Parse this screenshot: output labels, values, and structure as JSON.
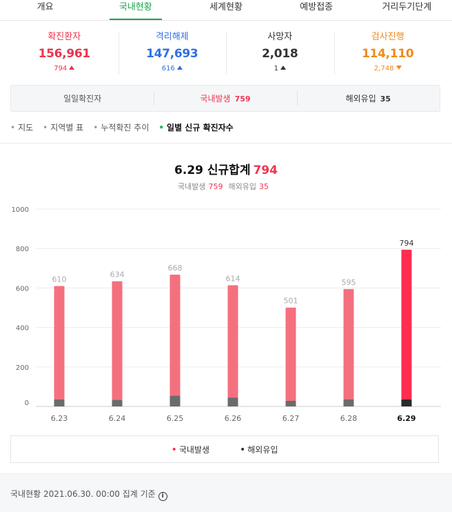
{
  "tabs": [
    {
      "label": "개요"
    },
    {
      "label": "국내현황"
    },
    {
      "label": "세계현황"
    },
    {
      "label": "예방접종"
    },
    {
      "label": "거리두기단계"
    }
  ],
  "stats": [
    {
      "label": "확진환자",
      "value": "156,961",
      "delta": "794",
      "direction": "up",
      "color": "#e8344e"
    },
    {
      "label": "격리해제",
      "value": "147,693",
      "delta": "616",
      "direction": "up",
      "color": "#2f6ee5"
    },
    {
      "label": "사망자",
      "value": "2,018",
      "delta": "1",
      "direction": "up",
      "color": "#333333"
    },
    {
      "label": "검사진행",
      "value": "114,110",
      "delta": "2,748",
      "direction": "down",
      "color": "#f08a1c"
    }
  ],
  "daily": {
    "label": "일일확진자",
    "domestic_label": "국내발생",
    "domestic_value": "759",
    "imported_label": "해외유입",
    "imported_value": "35"
  },
  "subnav": [
    {
      "label": "지도"
    },
    {
      "label": "지역별 표"
    },
    {
      "label": "누적확진 추이"
    },
    {
      "label": "일별 신규 확진자수"
    }
  ],
  "chart_header": {
    "date": "6.29",
    "title": "신규합계",
    "total": "794",
    "domestic_label": "국내발생",
    "domestic_value": "759",
    "imported_label": "해외유입",
    "imported_value": "35"
  },
  "chart_data": {
    "type": "bar",
    "stacked": true,
    "categories": [
      "6.23",
      "6.24",
      "6.25",
      "6.26",
      "6.27",
      "6.28",
      "6.29"
    ],
    "totals": [
      610,
      634,
      668,
      614,
      501,
      595,
      794
    ],
    "series": [
      {
        "name": "국내발생",
        "values": [
          575,
          601,
          613,
          569,
          473,
          559,
          759
        ],
        "color": "#f4707f",
        "highlight_color": "#ff2d4f"
      },
      {
        "name": "해외유입",
        "values": [
          35,
          33,
          55,
          45,
          28,
          36,
          35
        ],
        "color": "#6b6b6b",
        "highlight_color": "#2b2b2b"
      }
    ],
    "y_ticks": [
      0,
      200,
      400,
      600,
      800,
      1000
    ],
    "ylim": [
      0,
      1000
    ],
    "highlight_index": 6,
    "grid": true
  },
  "legend": [
    {
      "label": "국내발생",
      "color": "#ff2d4f"
    },
    {
      "label": "해외유입",
      "color": "#333333"
    }
  ],
  "footer": {
    "text": "국내현황 2021.06.30. 00:00 집계 기준",
    "icon": "info-icon"
  }
}
